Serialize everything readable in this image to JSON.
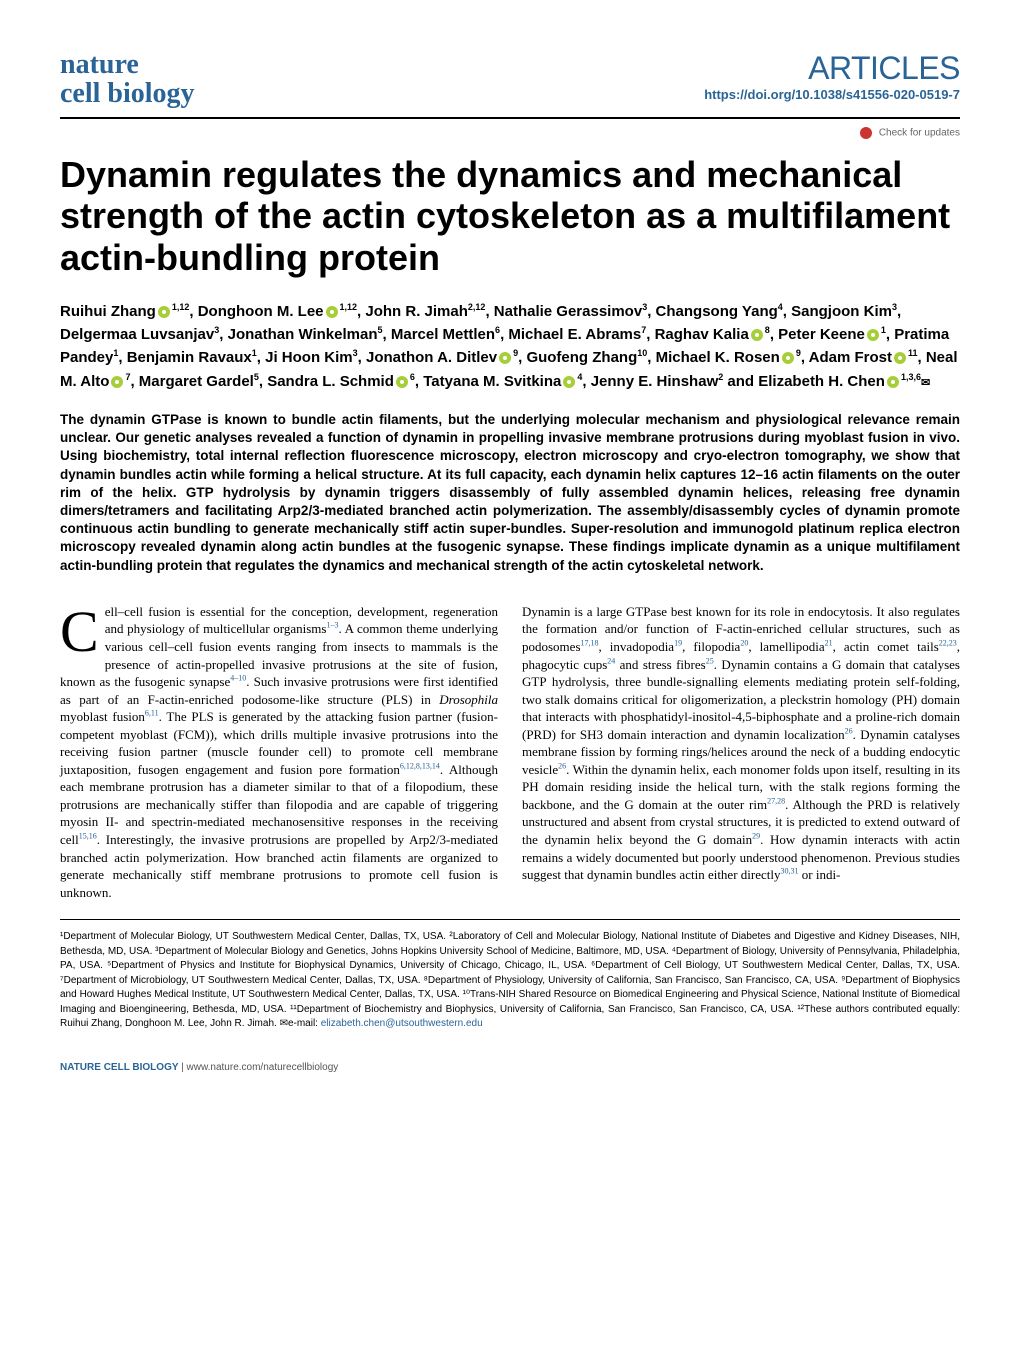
{
  "header": {
    "journal_line1": "nature",
    "journal_line2": "cell biology",
    "section_label": "ARTICLES",
    "doi": "https://doi.org/10.1038/s41556-020-0519-7",
    "check_updates": "Check for updates"
  },
  "title": "Dynamin regulates the dynamics and mechanical strength of the actin cytoskeleton as a multifilament actin-bundling protein",
  "authors": [
    {
      "name": "Ruihui Zhang",
      "orcid": true,
      "affil": "1,12"
    },
    {
      "name": "Donghoon M. Lee",
      "orcid": true,
      "affil": "1,12"
    },
    {
      "name": "John R. Jimah",
      "orcid": false,
      "affil": "2,12"
    },
    {
      "name": "Nathalie Gerassimov",
      "orcid": false,
      "affil": "3"
    },
    {
      "name": "Changsong Yang",
      "orcid": false,
      "affil": "4"
    },
    {
      "name": "Sangjoon Kim",
      "orcid": false,
      "affil": "3"
    },
    {
      "name": "Delgermaa Luvsanjav",
      "orcid": false,
      "affil": "3"
    },
    {
      "name": "Jonathan Winkelman",
      "orcid": false,
      "affil": "5"
    },
    {
      "name": "Marcel Mettlen",
      "orcid": false,
      "affil": "6"
    },
    {
      "name": "Michael E. Abrams",
      "orcid": false,
      "affil": "7"
    },
    {
      "name": "Raghav Kalia",
      "orcid": true,
      "affil": "8"
    },
    {
      "name": "Peter Keene",
      "orcid": true,
      "affil": "1"
    },
    {
      "name": "Pratima Pandey",
      "orcid": false,
      "affil": "1"
    },
    {
      "name": "Benjamin Ravaux",
      "orcid": false,
      "affil": "1"
    },
    {
      "name": "Ji Hoon Kim",
      "orcid": false,
      "affil": "3"
    },
    {
      "name": "Jonathon A. Ditlev",
      "orcid": true,
      "affil": "9"
    },
    {
      "name": "Guofeng Zhang",
      "orcid": false,
      "affil": "10"
    },
    {
      "name": "Michael K. Rosen",
      "orcid": true,
      "affil": "9"
    },
    {
      "name": "Adam Frost",
      "orcid": true,
      "affil": "11"
    },
    {
      "name": "Neal M. Alto",
      "orcid": true,
      "affil": "7"
    },
    {
      "name": "Margaret Gardel",
      "orcid": false,
      "affil": "5"
    },
    {
      "name": "Sandra L. Schmid",
      "orcid": true,
      "affil": "6"
    },
    {
      "name": "Tatyana M. Svitkina",
      "orcid": true,
      "affil": "4"
    },
    {
      "name": "Jenny E. Hinshaw",
      "orcid": false,
      "affil": "2"
    },
    {
      "name": "Elizabeth H. Chen",
      "orcid": true,
      "affil": "1,3,6",
      "corr": true
    }
  ],
  "abstract": "The dynamin GTPase is known to bundle actin filaments, but the underlying molecular mechanism and physiological relevance remain unclear. Our genetic analyses revealed a function of dynamin in propelling invasive membrane protrusions during myoblast fusion in vivo. Using biochemistry, total internal reflection fluorescence microscopy, electron microscopy and cryo-electron tomography, we show that dynamin bundles actin while forming a helical structure. At its full capacity, each dynamin helix captures 12–16 actin filaments on the outer rim of the helix. GTP hydrolysis by dynamin triggers disassembly of fully assembled dynamin helices, releasing free dynamin dimers/tetramers and facilitating Arp2/3-mediated branched actin polymerization. The assembly/disassembly cycles of dynamin promote continuous actin bundling to generate mechanically stiff actin super-bundles. Super-resolution and immunogold platinum replica electron microscopy revealed dynamin along actin bundles at the fusogenic synapse. These findings implicate dynamin as a unique multifilament actin-bundling protein that regulates the dynamics and mechanical strength of the actin cytoskeletal network.",
  "body": {
    "col1_dropcap": "C",
    "col1_html": "ell–cell fusion is essential for the conception, development, regeneration and physiology of multicellular organisms<span class='ref-sup'>1–3</span>. A common theme underlying various cell–cell fusion events ranging from insects to mammals is the presence of actin-propelled invasive protrusions at the site of fusion, known as the fusogenic synapse<span class='ref-sup'>4–10</span>. Such invasive protrusions were first identified as part of an F-actin-enriched podosome-like structure (PLS) in <span class='italic'>Drosophila</span> myoblast fusion<span class='ref-sup'>6,11</span>. The PLS is generated by the attacking fusion partner (fusion-competent myoblast (FCM)), which drills multiple invasive protrusions into the receiving fusion partner (muscle founder cell) to promote cell membrane juxtaposition, fusogen engagement and fusion pore formation<span class='ref-sup'>6,12,8,13,14</span>. Although each membrane protrusion has a diameter similar to that of a filopodium, these protrusions are mechanically stiffer than filopodia and are capable of triggering myosin II- and spectrin-mediated mechanosensitive responses in the receiving cell<span class='ref-sup'>15,16</span>. Interestingly, the invasive protrusions are propelled by Arp2/3-mediated branched actin polymerization. How branched actin filaments are organized to generate mechanically stiff membrane protrusions to promote cell fusion is unknown.",
    "col2_html": "Dynamin is a large GTPase best known for its role in endocytosis. It also regulates the formation and/or function of F-actin-enriched cellular structures, such as podosomes<span class='ref-sup'>17,18</span>, invadopodia<span class='ref-sup'>19</span>, filopodia<span class='ref-sup'>20</span>, lamellipodia<span class='ref-sup'>21</span>, actin comet tails<span class='ref-sup'>22,23</span>, phagocytic cups<span class='ref-sup'>24</span> and stress fibres<span class='ref-sup'>25</span>. Dynamin contains a G domain that catalyses GTP hydrolysis, three bundle-signalling elements mediating protein self-folding, two stalk domains critical for oligomerization, a pleckstrin homology (PH) domain that interacts with phosphatidyl-inositol-4,5-biphosphate and a proline-rich domain (PRD) for SH3 domain interaction and dynamin localization<span class='ref-sup'>26</span>. Dynamin catalyses membrane fission by forming rings/helices around the neck of a budding endocytic vesicle<span class='ref-sup'>26</span>. Within the dynamin helix, each monomer folds upon itself, resulting in its PH domain residing inside the helical turn, with the stalk regions forming the backbone, and the G domain at the outer rim<span class='ref-sup'>27,28</span>. Although the PRD is relatively unstructured and absent from crystal structures, it is predicted to extend outward of the dynamin helix beyond the G domain<span class='ref-sup'>29</span>. How dynamin interacts with actin remains a widely documented but poorly understood phenomenon. Previous studies suggest that dynamin bundles actin either directly<span class='ref-sup'>30,31</span> or indi-"
  },
  "affiliations": "¹Department of Molecular Biology, UT Southwestern Medical Center, Dallas, TX, USA. ²Laboratory of Cell and Molecular Biology, National Institute of Diabetes and Digestive and Kidney Diseases, NIH, Bethesda, MD, USA. ³Department of Molecular Biology and Genetics, Johns Hopkins University School of Medicine, Baltimore, MD, USA. ⁴Department of Biology, University of Pennsylvania, Philadelphia, PA, USA. ⁵Department of Physics and Institute for Biophysical Dynamics, University of Chicago, Chicago, IL, USA. ⁶Department of Cell Biology, UT Southwestern Medical Center, Dallas, TX, USA. ⁷Department of Microbiology, UT Southwestern Medical Center, Dallas, TX, USA. ⁸Department of Physiology, University of California, San Francisco, San Francisco, CA, USA. ⁹Department of Biophysics and Howard Hughes Medical Institute, UT Southwestern Medical Center, Dallas, TX, USA. ¹⁰Trans-NIH Shared Resource on Biomedical Engineering and Physical Science, National Institute of Biomedical Imaging and Bioengineering, Bethesda, MD, USA. ¹¹Department of Biochemistry and Biophysics, University of California, San Francisco, San Francisco, CA, USA. ¹²These authors contributed equally: Ruihui Zhang, Donghoon M. Lee, John R. Jimah. ✉e-mail: ",
  "email": "elizabeth.chen@utsouthwestern.edu",
  "footer": {
    "journal": "NATURE CELL BIOLOGY",
    "link": "www.nature.com/naturecellbiology"
  },
  "colors": {
    "brand_blue": "#2a6496",
    "orcid_green": "#a6ce39",
    "check_red": "#c33"
  }
}
